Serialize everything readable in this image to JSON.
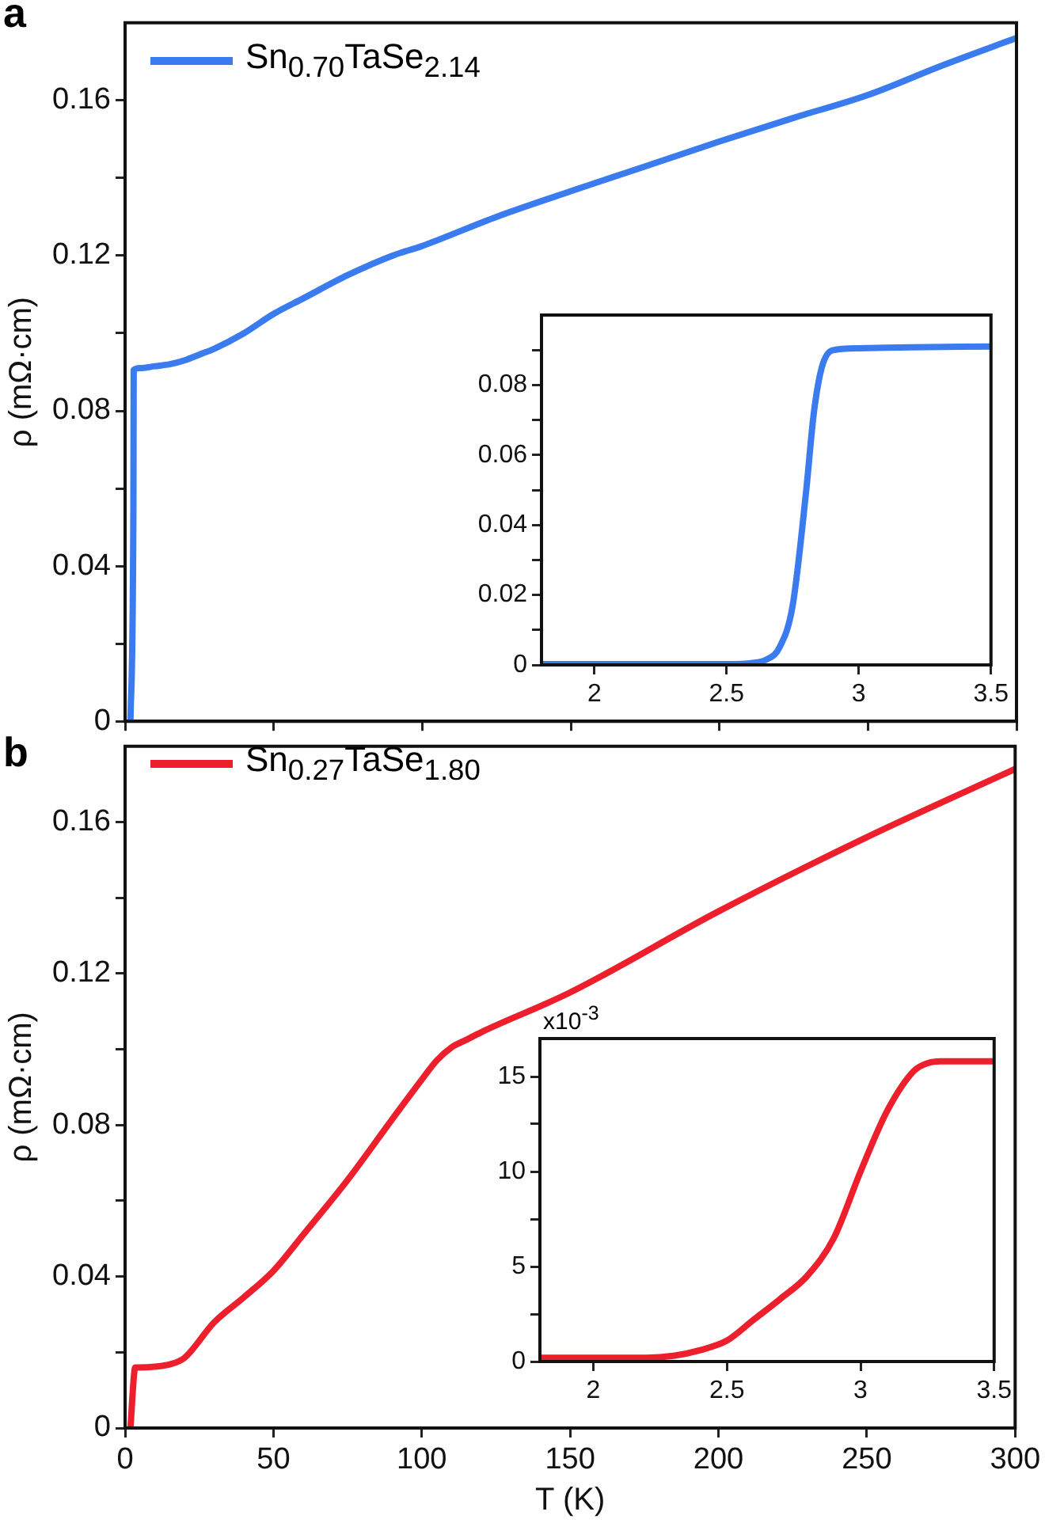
{
  "chart_data": [
    {
      "type": "line",
      "annotations": [
        "a"
      ],
      "ylabel": "ρ (mΩ·cm)",
      "x": [
        1.8,
        2.8,
        2.9,
        5,
        10,
        15,
        20,
        25,
        30,
        40,
        50,
        60,
        75,
        90,
        100,
        125,
        150,
        175,
        200,
        225,
        250,
        275,
        300
      ],
      "series": [
        {
          "name": "Sn$_{0.70}$TaSe$_{2.14}$",
          "color": "#3a7cf0",
          "values": [
            0,
            0.055,
            0.0905,
            0.091,
            0.0915,
            0.092,
            0.093,
            0.0945,
            0.096,
            0.1,
            0.105,
            0.109,
            0.115,
            0.12,
            0.1225,
            0.13,
            0.1366,
            0.143,
            0.1494,
            0.1555,
            0.1614,
            0.169,
            0.1761
          ]
        }
      ],
      "xlim": [
        0,
        300
      ],
      "xticks": [
        0,
        50,
        100,
        150,
        200,
        250,
        300
      ],
      "ylim": [
        0,
        0.18
      ],
      "yticks": [
        0,
        {
          "value": 0.02,
          "label": null
        },
        0.04,
        {
          "value": 0.06,
          "label": null
        },
        0.08,
        {
          "value": 0.1,
          "label": null
        },
        0.12,
        {
          "value": 0.14,
          "label": null
        },
        0.16
      ],
      "tick_labels": "y",
      "legend": "top left",
      "grid": false,
      "marker": "none"
    },
    {
      "type": "line",
      "x": [
        1.8,
        2.0,
        2.5,
        2.6,
        2.65,
        2.7,
        2.75,
        2.8,
        2.83,
        2.86,
        2.9,
        3.0,
        3.2,
        3.5
      ],
      "series": [
        {
          "color": "#3a7cf0",
          "values": [
            0.0002,
            0.0002,
            0.0002,
            0.0006,
            0.0015,
            0.005,
            0.017,
            0.049,
            0.072,
            0.085,
            0.0899,
            0.0905,
            0.0908,
            0.091
          ]
        }
      ],
      "xlim": [
        1.8,
        3.5
      ],
      "xticks": [
        2,
        2.5,
        3,
        3.5
      ],
      "ylim": [
        0,
        0.1
      ],
      "yticks": [
        0,
        {
          "value": 0.01,
          "label": null
        },
        0.02,
        {
          "value": 0.03,
          "label": null
        },
        0.04,
        {
          "value": 0.05,
          "label": null
        },
        0.06,
        {
          "value": 0.07,
          "label": null
        },
        0.08,
        {
          "value": 0.09,
          "label": null
        }
      ],
      "grid": false,
      "marker": "none"
    },
    {
      "type": "line",
      "annotations": [
        "b"
      ],
      "xlabel": "T (K)",
      "ylabel": "ρ (mΩ·cm)",
      "x": [
        1.8,
        3.3,
        3.5,
        5,
        10,
        15,
        20,
        30,
        40,
        50,
        60,
        75,
        90,
        100,
        105,
        110,
        115,
        120,
        150,
        200,
        250,
        300
      ],
      "series": [
        {
          "name": "Sn$_{0.27}$TaSe$_{1.80}$",
          "color": "#ee1f2d",
          "values": [
            0,
            0.0158,
            0.016,
            0.016,
            0.0162,
            0.0168,
            0.0185,
            0.0279,
            0.0345,
            0.0415,
            0.051,
            0.0655,
            0.0815,
            0.092,
            0.097,
            0.1005,
            0.1025,
            0.1045,
            0.115,
            0.1364,
            0.156,
            0.174
          ]
        }
      ],
      "xlim": [
        0,
        300
      ],
      "xticks": [
        0,
        50,
        100,
        150,
        200,
        250,
        300
      ],
      "ylim": [
        0,
        0.18
      ],
      "yticks": [
        0,
        {
          "value": 0.02,
          "label": null
        },
        0.04,
        {
          "value": 0.06,
          "label": null
        },
        0.08,
        {
          "value": 0.1,
          "label": null
        },
        0.12,
        {
          "value": 0.14,
          "label": null
        },
        0.16
      ],
      "legend": "top left",
      "grid": false,
      "marker": "none"
    },
    {
      "type": "line",
      "annotations": [
        "x10$^{-3}$"
      ],
      "x": [
        1.8,
        2.0,
        2.2,
        2.3,
        2.4,
        2.5,
        2.6,
        2.7,
        2.8,
        2.9,
        3.0,
        3.1,
        3.2,
        3.25,
        3.3,
        3.5
      ],
      "series": [
        {
          "color": "#ee1f2d",
          "values": [
            0.2,
            0.2,
            0.2,
            0.3,
            0.6,
            1.1,
            2.2,
            3.3,
            4.5,
            6.5,
            10,
            13.2,
            15.3,
            15.7,
            15.8,
            15.8
          ]
        }
      ],
      "xlim": [
        1.8,
        3.5
      ],
      "xticks": [
        2,
        2.5,
        3,
        3.5
      ],
      "ylim": [
        0,
        17
      ],
      "yticks": [
        0,
        {
          "value": 2.5,
          "label": null
        },
        5,
        {
          "value": 7.5,
          "label": null
        },
        10,
        {
          "value": 12.5,
          "label": null
        },
        15
      ],
      "grid": false,
      "marker": "none"
    }
  ]
}
